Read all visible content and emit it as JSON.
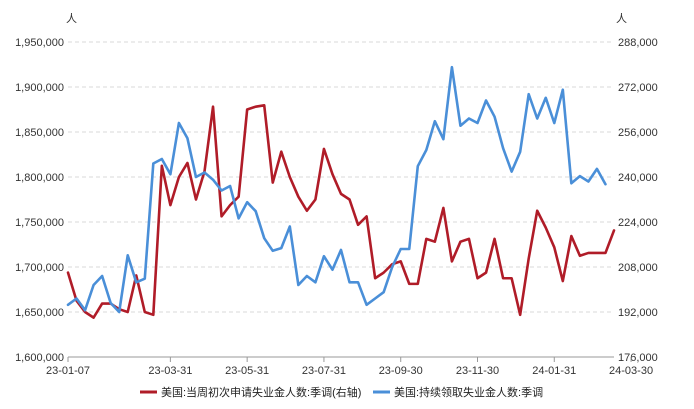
{
  "chart_data": {
    "type": "line",
    "title": "",
    "y_left_unit": "人",
    "y_right_unit": "人",
    "ylim_left": [
      1600000,
      1950000
    ],
    "ylim_right": [
      176000,
      288000
    ],
    "y_left_ticks": [
      1600000,
      1650000,
      1700000,
      1750000,
      1800000,
      1850000,
      1900000,
      1950000
    ],
    "y_right_ticks": [
      176000,
      192000,
      208000,
      224000,
      240000,
      256000,
      272000,
      288000
    ],
    "y_left_tick_labels": [
      "1,600,000",
      "1,650,000",
      "1,700,000",
      "1,750,000",
      "1,800,000",
      "1,850,000",
      "1,900,000",
      "1,950,000"
    ],
    "y_right_tick_labels": [
      "176,000",
      "192,000",
      "208,000",
      "224,000",
      "240,000",
      "256,000",
      "272,000",
      "288,000"
    ],
    "x_tick_labels": [
      "23-01-07",
      "23-03-31",
      "23-05-31",
      "23-07-31",
      "23-09-30",
      "23-11-30",
      "24-01-31",
      "24-03-30"
    ],
    "x_tick_index": [
      0,
      12,
      21,
      30,
      39,
      48,
      57,
      66
    ],
    "grid": true,
    "legend_position": "bottom",
    "series": [
      {
        "name": "美国:当周初次申请失业金人数:季调(右轴)",
        "axis": "right",
        "color": "#b01c28",
        "values": [
          206000,
          196000,
          192000,
          190000,
          195000,
          195000,
          193000,
          192000,
          205000,
          192000,
          191000,
          244000,
          230000,
          240000,
          245000,
          232000,
          242000,
          265000,
          226000,
          230000,
          233000,
          264000,
          265000,
          265500,
          238000,
          249000,
          240000,
          233000,
          228000,
          232000,
          250000,
          241000,
          234000,
          232000,
          223000,
          226000,
          204000,
          206000,
          209000,
          210000,
          202000,
          202000,
          218000,
          217000,
          229000,
          210000,
          217000,
          218000,
          204000,
          206000,
          218000,
          204000,
          204000,
          191000,
          211000,
          228000,
          222000,
          215000,
          203000,
          219000,
          212000,
          213000,
          213000,
          213000,
          221000
        ]
      },
      {
        "name": "美国:持续领取失业金人数:季调",
        "axis": "left",
        "color": "#4a8fd8",
        "values": [
          1658000,
          1665000,
          1652000,
          1680000,
          1690000,
          1660000,
          1650000,
          1713000,
          1683000,
          1687000,
          1815000,
          1820000,
          1803000,
          1860000,
          1843000,
          1800000,
          1805000,
          1797000,
          1785000,
          1790000,
          1754000,
          1772000,
          1762000,
          1732000,
          1718000,
          1721000,
          1745000,
          1680000,
          1690000,
          1683000,
          1712000,
          1697000,
          1719000,
          1683000,
          1683000,
          1658000,
          1665000,
          1672000,
          1700000,
          1720000,
          1720000,
          1812000,
          1830000,
          1862000,
          1842000,
          1922000,
          1857000,
          1865000,
          1860000,
          1885000,
          1867000,
          1832000,
          1806000,
          1828000,
          1892000,
          1865000,
          1888000,
          1860000,
          1897000,
          1793000,
          1801000,
          1795000,
          1809000,
          1792000
        ]
      }
    ]
  }
}
